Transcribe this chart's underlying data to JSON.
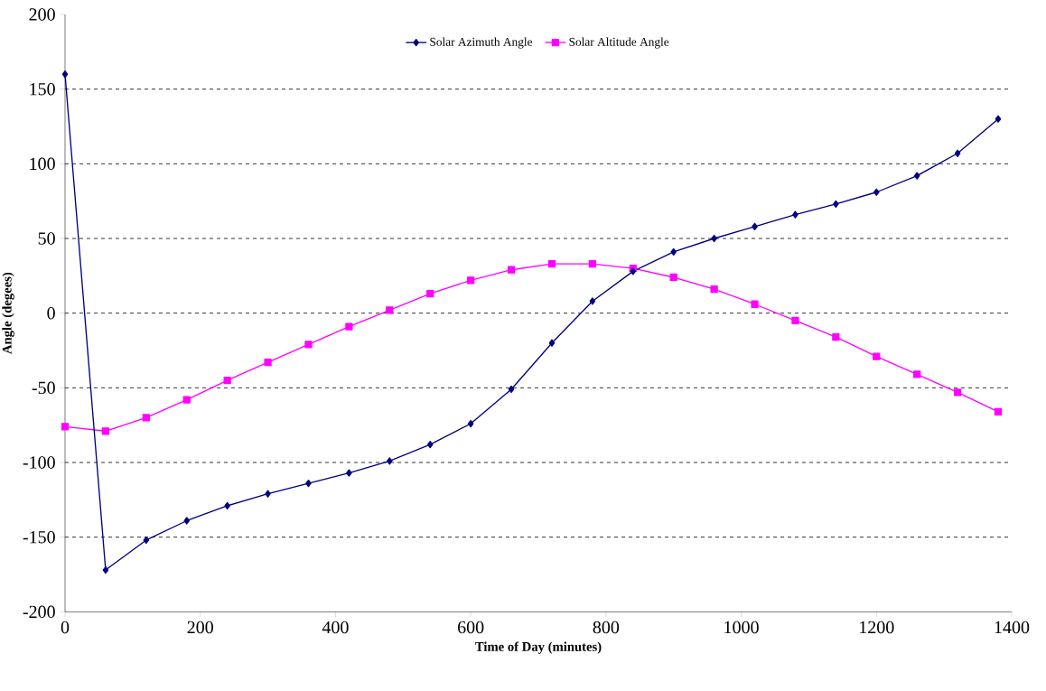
{
  "chart_data": {
    "type": "line",
    "xlabel": "Time of Day (minutes)",
    "ylabel": "Angle (degees)",
    "x": [
      0,
      60,
      120,
      180,
      240,
      300,
      360,
      420,
      480,
      540,
      600,
      660,
      720,
      780,
      840,
      900,
      960,
      1020,
      1080,
      1140,
      1200,
      1260,
      1320,
      1380
    ],
    "series": [
      {
        "name": "Solar Azimuth Angle",
        "color": "#000080",
        "marker": "diamond",
        "values": [
          160,
          -172,
          -152,
          -139,
          -129,
          -121,
          -114,
          -107,
          -99,
          -88,
          -74,
          -51,
          -20,
          8,
          28,
          41,
          50,
          58,
          66,
          73,
          81,
          92,
          107,
          130
        ]
      },
      {
        "name": "Solar Altitude Angle",
        "color": "#ff00ff",
        "marker": "square",
        "values": [
          -76,
          -79,
          -70,
          -58,
          -45,
          -33,
          -21,
          -9,
          2,
          13,
          22,
          29,
          33,
          33,
          30,
          24,
          16,
          6,
          -5,
          -16,
          -29,
          -41,
          -53,
          -66
        ]
      }
    ],
    "xlim": [
      0,
      1400
    ],
    "xticks": [
      0,
      200,
      400,
      600,
      800,
      1000,
      1200,
      1400
    ],
    "ylim": [
      -200,
      200
    ],
    "yticks": [
      -200,
      -150,
      -100,
      -50,
      0,
      50,
      100,
      150,
      200
    ],
    "grid": "y",
    "legend": "top",
    "line_style": "solid"
  }
}
